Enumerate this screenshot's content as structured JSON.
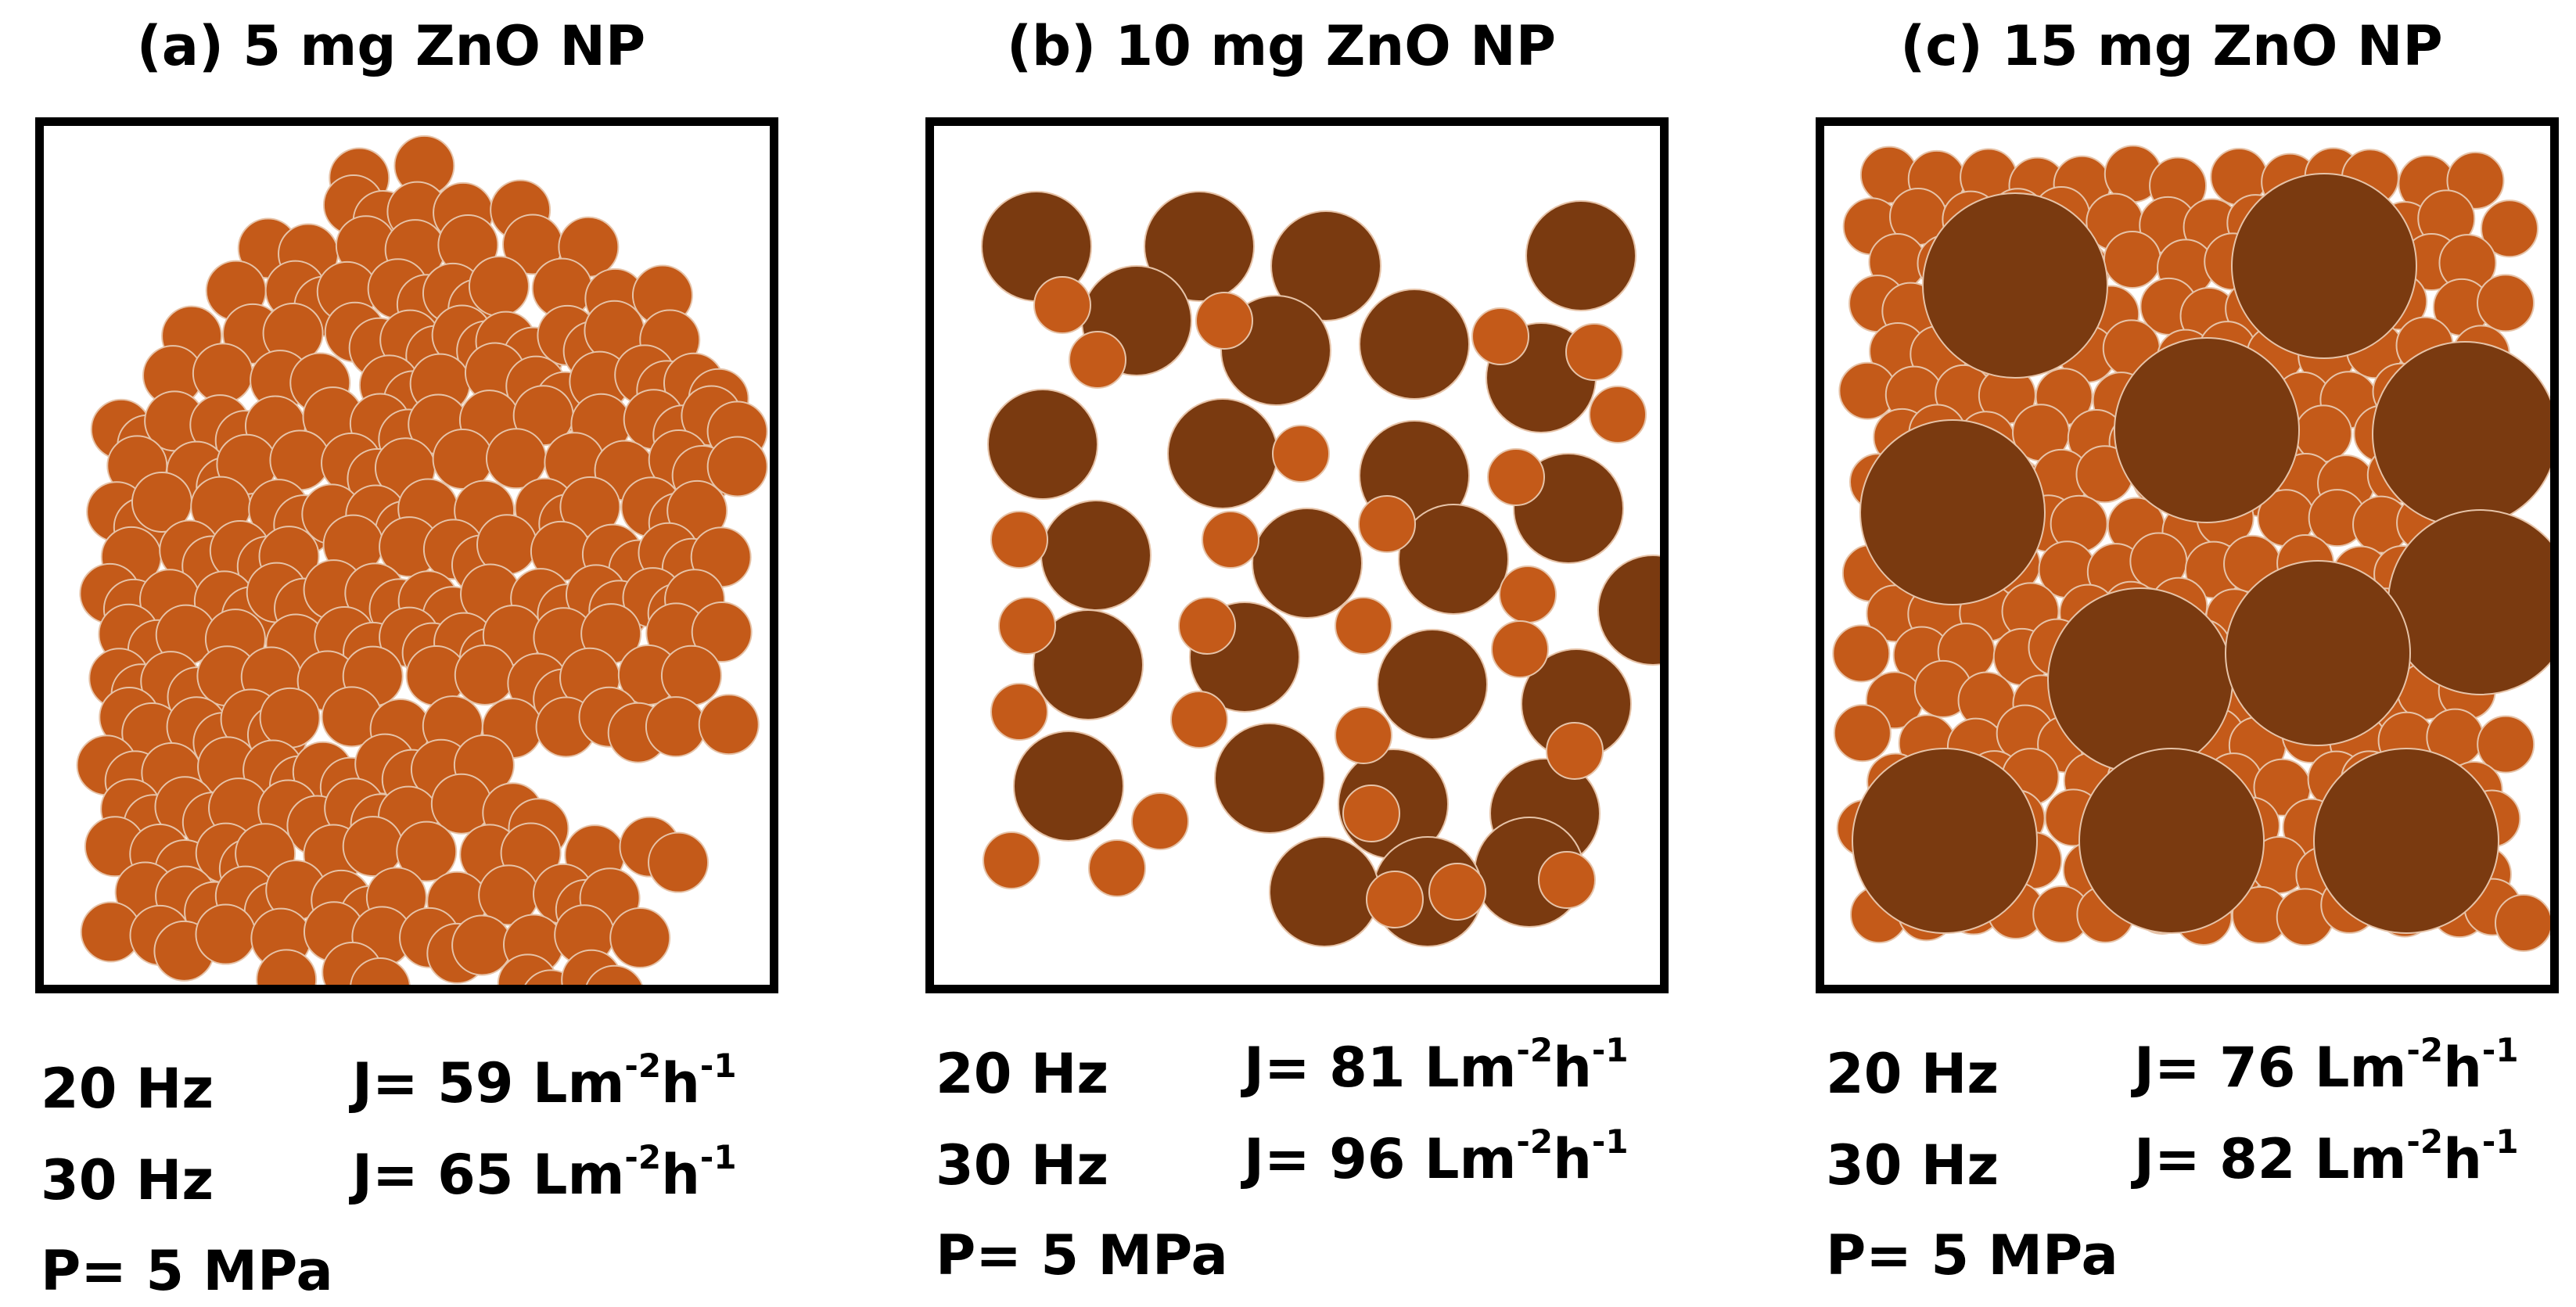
{
  "colors": {
    "small_particle": "#c45a19",
    "large_particle": "#7a3a10",
    "particle_outline": "#e6c3a8",
    "frame": "#000000"
  },
  "panels": [
    {
      "title": "(a) 5 mg ZnO NP",
      "freq1": "20 Hz",
      "flux1_prefix": "J= 59 Lm",
      "freq2": "30 Hz",
      "flux2_prefix": "J= 65 Lm",
      "flux_exp1": "-2",
      "flux_unit_mid": "h",
      "flux_exp2": "-1",
      "pressure": "P= 5 MPa"
    },
    {
      "title": "(b) 10 mg ZnO NP",
      "freq1": "20 Hz",
      "flux1_prefix": "J= 81 Lm",
      "freq2": "30 Hz",
      "flux2_prefix": "J= 96 Lm",
      "flux_exp1": "-2",
      "flux_unit_mid": "h",
      "flux_exp2": "-1",
      "pressure": "P= 5 MPa"
    },
    {
      "title": "(c) 15 mg ZnO NP",
      "freq1": "20 Hz",
      "flux1_prefix": "J= 76 Lm",
      "freq2": "30 Hz",
      "flux2_prefix": "J= 82 Lm",
      "flux_exp1": "-2",
      "flux_unit_mid": "h",
      "flux_exp2": "-1",
      "pressure": "P= 5 MPa"
    }
  ]
}
